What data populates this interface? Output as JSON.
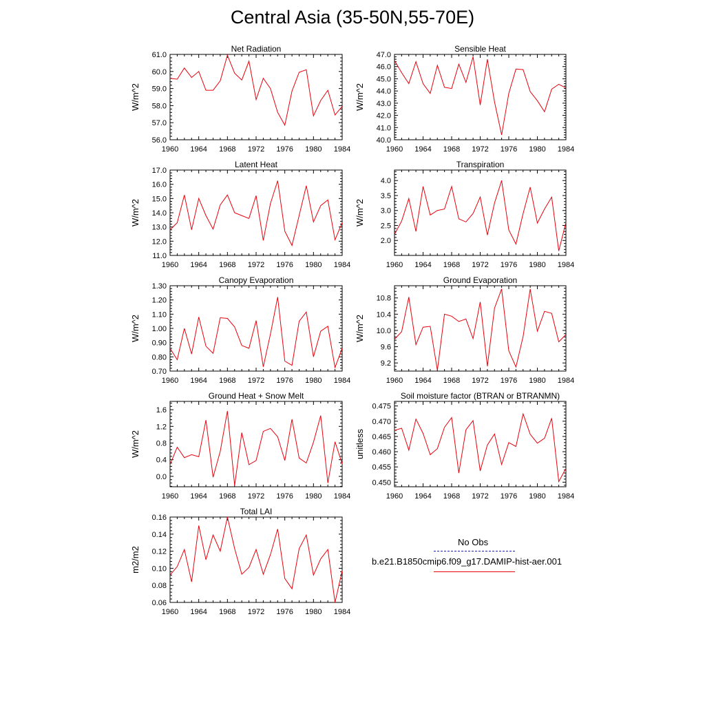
{
  "title": "Central Asia (35-50N,55-70E)",
  "colors": {
    "model": "#e8000b",
    "obs": "#1a1aa8"
  },
  "legend": {
    "obs_label": "No Obs",
    "model_label": "b.e21.B1850cmip6.f09_g17.DAMIP-hist-aer.001"
  },
  "chart_data": [
    {
      "type": "line",
      "title": "Net Radiation",
      "ylabel": "W/m^2",
      "xlim": [
        1960,
        1984
      ],
      "ylim": [
        56.0,
        61.0
      ],
      "yticks": [
        56.0,
        57.0,
        58.0,
        59.0,
        60.0,
        61.0
      ],
      "ytick_labels": [
        "56.0",
        "57.0",
        "58.0",
        "59.0",
        "60.0",
        "61.0"
      ],
      "xticks": [
        1960,
        1964,
        1968,
        1972,
        1976,
        1980,
        1984
      ],
      "xtick_labels": [
        "1960",
        "1964",
        "1968",
        "1972",
        "1976",
        "1980",
        "1984"
      ],
      "x": [
        1960,
        1961,
        1962,
        1963,
        1964,
        1965,
        1966,
        1967,
        1968,
        1969,
        1970,
        1971,
        1972,
        1973,
        1974,
        1975,
        1976,
        1977,
        1978,
        1979,
        1980,
        1981,
        1982,
        1983,
        1984
      ],
      "series": [
        {
          "name": "b.e21.B1850cmip6.f09_g17.DAMIP-hist-aer.001",
          "values": [
            59.6,
            59.55,
            60.2,
            59.65,
            60.0,
            58.9,
            58.9,
            59.45,
            60.95,
            59.9,
            59.5,
            60.6,
            58.35,
            59.6,
            59.0,
            57.6,
            56.85,
            58.85,
            59.95,
            60.1,
            57.4,
            58.3,
            58.9,
            57.45,
            57.95
          ]
        }
      ]
    },
    {
      "type": "line",
      "title": "Sensible Heat",
      "ylabel": "W/m^2",
      "xlim": [
        1960,
        1984
      ],
      "ylim": [
        40.0,
        47.0
      ],
      "yticks": [
        40.0,
        41.0,
        42.0,
        43.0,
        44.0,
        45.0,
        46.0,
        47.0
      ],
      "ytick_labels": [
        "40.0",
        "41.0",
        "42.0",
        "43.0",
        "44.0",
        "45.0",
        "46.0",
        "47.0"
      ],
      "xticks": [
        1960,
        1964,
        1968,
        1972,
        1976,
        1980,
        1984
      ],
      "xtick_labels": [
        "1960",
        "1964",
        "1968",
        "1972",
        "1976",
        "1980",
        "1984"
      ],
      "x": [
        1960,
        1961,
        1962,
        1963,
        1964,
        1965,
        1966,
        1967,
        1968,
        1969,
        1970,
        1971,
        1972,
        1973,
        1974,
        1975,
        1976,
        1977,
        1978,
        1979,
        1980,
        1981,
        1982,
        1983,
        1984
      ],
      "series": [
        {
          "name": "b.e21.B1850cmip6.f09_g17.DAMIP-hist-aer.001",
          "values": [
            46.5,
            45.5,
            44.6,
            46.4,
            44.6,
            43.8,
            46.1,
            44.3,
            44.2,
            46.2,
            44.7,
            46.8,
            42.85,
            46.6,
            43.1,
            40.4,
            43.8,
            45.8,
            45.75,
            43.95,
            43.2,
            42.3,
            44.15,
            44.55,
            44.25
          ]
        }
      ]
    },
    {
      "type": "line",
      "title": "Latent Heat",
      "ylabel": "W/m^2",
      "xlim": [
        1960,
        1984
      ],
      "ylim": [
        11.0,
        17.0
      ],
      "yticks": [
        11.0,
        12.0,
        13.0,
        14.0,
        15.0,
        16.0,
        17.0
      ],
      "ytick_labels": [
        "11.0",
        "12.0",
        "13.0",
        "14.0",
        "15.0",
        "16.0",
        "17.0"
      ],
      "xticks": [
        1960,
        1964,
        1968,
        1972,
        1976,
        1980,
        1984
      ],
      "xtick_labels": [
        "1960",
        "1964",
        "1968",
        "1972",
        "1976",
        "1980",
        "1984"
      ],
      "x": [
        1960,
        1961,
        1962,
        1963,
        1964,
        1965,
        1966,
        1967,
        1968,
        1969,
        1970,
        1971,
        1972,
        1973,
        1974,
        1975,
        1976,
        1977,
        1978,
        1979,
        1980,
        1981,
        1982,
        1983,
        1984
      ],
      "series": [
        {
          "name": "b.e21.B1850cmip6.f09_g17.DAMIP-hist-aer.001",
          "values": [
            12.8,
            13.3,
            15.25,
            12.8,
            15.0,
            13.8,
            12.85,
            14.55,
            15.25,
            14.0,
            13.8,
            13.6,
            15.2,
            12.05,
            14.65,
            16.25,
            12.7,
            11.7,
            13.8,
            15.9,
            13.35,
            14.5,
            14.9,
            12.1,
            13.3
          ]
        }
      ]
    },
    {
      "type": "line",
      "title": "Transpiration",
      "ylabel": "W/m^2",
      "xlim": [
        1960,
        1984
      ],
      "ylim": [
        1.5,
        4.35
      ],
      "yticks": [
        2.0,
        2.5,
        3.0,
        3.5,
        4.0
      ],
      "ytick_labels": [
        "2.0",
        "2.5",
        "3.0",
        "3.5",
        "4.0"
      ],
      "xticks": [
        1960,
        1964,
        1968,
        1972,
        1976,
        1980,
        1984
      ],
      "xtick_labels": [
        "1960",
        "1964",
        "1968",
        "1972",
        "1976",
        "1980",
        "1984"
      ],
      "x": [
        1960,
        1961,
        1962,
        1963,
        1964,
        1965,
        1966,
        1967,
        1968,
        1969,
        1970,
        1971,
        1972,
        1973,
        1974,
        1975,
        1976,
        1977,
        1978,
        1979,
        1980,
        1981,
        1982,
        1983,
        1984
      ],
      "series": [
        {
          "name": "b.e21.B1850cmip6.f09_g17.DAMIP-hist-aer.001",
          "values": [
            2.2,
            2.65,
            3.4,
            2.3,
            3.8,
            2.85,
            3.0,
            3.05,
            3.8,
            2.72,
            2.62,
            2.9,
            3.45,
            2.18,
            3.25,
            4.0,
            2.35,
            1.88,
            2.9,
            3.78,
            2.58,
            3.05,
            3.45,
            1.65,
            2.6
          ]
        }
      ]
    },
    {
      "type": "line",
      "title": "Canopy Evaporation",
      "ylabel": "W/m^2",
      "xlim": [
        1960,
        1984
      ],
      "ylim": [
        0.7,
        1.3
      ],
      "yticks": [
        0.7,
        0.8,
        0.9,
        1.0,
        1.1,
        1.2,
        1.3
      ],
      "ytick_labels": [
        "0.70",
        "0.80",
        "0.90",
        "1.00",
        "1.10",
        "1.20",
        "1.30"
      ],
      "xticks": [
        1960,
        1964,
        1968,
        1972,
        1976,
        1980,
        1984
      ],
      "xtick_labels": [
        "1960",
        "1964",
        "1968",
        "1972",
        "1976",
        "1980",
        "1984"
      ],
      "x": [
        1960,
        1961,
        1962,
        1963,
        1964,
        1965,
        1966,
        1967,
        1968,
        1969,
        1970,
        1971,
        1972,
        1973,
        1974,
        1975,
        1976,
        1977,
        1978,
        1979,
        1980,
        1981,
        1982,
        1983,
        1984
      ],
      "series": [
        {
          "name": "b.e21.B1850cmip6.f09_g17.DAMIP-hist-aer.001",
          "values": [
            0.86,
            0.78,
            1.0,
            0.82,
            1.08,
            0.875,
            0.825,
            1.075,
            1.07,
            1.01,
            0.88,
            0.86,
            1.055,
            0.73,
            0.96,
            1.22,
            0.77,
            0.74,
            1.05,
            1.115,
            0.8,
            0.98,
            1.015,
            0.725,
            0.86
          ]
        }
      ]
    },
    {
      "type": "line",
      "title": "Ground Evaporation",
      "ylabel": "W/m^2",
      "xlim": [
        1960,
        1984
      ],
      "ylim": [
        9.0,
        11.1
      ],
      "yticks": [
        9.2,
        9.6,
        10.0,
        10.4,
        10.8
      ],
      "ytick_labels": [
        "9.2",
        "9.6",
        "10.0",
        "10.4",
        "10.8"
      ],
      "xticks": [
        1960,
        1964,
        1968,
        1972,
        1976,
        1980,
        1984
      ],
      "xtick_labels": [
        "1960",
        "1964",
        "1968",
        "1972",
        "1976",
        "1980",
        "1984"
      ],
      "x": [
        1960,
        1961,
        1962,
        1963,
        1964,
        1965,
        1966,
        1967,
        1968,
        1969,
        1970,
        1971,
        1972,
        1973,
        1974,
        1975,
        1976,
        1977,
        1978,
        1979,
        1980,
        1981,
        1982,
        1983,
        1984
      ],
      "series": [
        {
          "name": "b.e21.B1850cmip6.f09_g17.DAMIP-hist-aer.001",
          "values": [
            9.78,
            9.97,
            10.82,
            9.65,
            10.08,
            10.1,
            9.02,
            10.4,
            10.35,
            10.22,
            10.28,
            9.8,
            10.7,
            9.12,
            10.55,
            11.02,
            9.5,
            9.1,
            9.85,
            11.02,
            9.98,
            10.47,
            10.42,
            9.72,
            9.9
          ]
        }
      ]
    },
    {
      "type": "line",
      "title": "Ground Heat + Snow Melt",
      "ylabel": "W/m^2",
      "xlim": [
        1960,
        1984
      ],
      "ylim": [
        -0.25,
        1.8
      ],
      "yticks": [
        0.0,
        0.4,
        0.8,
        1.2,
        1.6
      ],
      "ytick_labels": [
        "0.0",
        "0.4",
        "0.8",
        "1.2",
        "1.6"
      ],
      "xticks": [
        1960,
        1964,
        1968,
        1972,
        1976,
        1980,
        1984
      ],
      "xtick_labels": [
        "1960",
        "1964",
        "1968",
        "1972",
        "1976",
        "1980",
        "1984"
      ],
      "x": [
        1960,
        1961,
        1962,
        1963,
        1964,
        1965,
        1966,
        1967,
        1968,
        1969,
        1970,
        1971,
        1972,
        1973,
        1974,
        1975,
        1976,
        1977,
        1978,
        1979,
        1980,
        1981,
        1982,
        1983,
        1984
      ],
      "series": [
        {
          "name": "b.e21.B1850cmip6.f09_g17.DAMIP-hist-aer.001",
          "values": [
            0.28,
            0.7,
            0.45,
            0.52,
            0.47,
            1.35,
            -0.02,
            0.6,
            1.57,
            -0.22,
            1.05,
            0.28,
            0.38,
            1.08,
            1.15,
            0.95,
            0.38,
            1.37,
            0.44,
            0.32,
            0.82,
            1.46,
            -0.16,
            0.83,
            0.3
          ]
        }
      ]
    },
    {
      "type": "line",
      "title": "Soil moisture factor (BTRAN or BTRANMN)",
      "ylabel": "unitless",
      "xlim": [
        1960,
        1984
      ],
      "ylim": [
        0.4485,
        0.4765
      ],
      "yticks": [
        0.45,
        0.455,
        0.46,
        0.465,
        0.47,
        0.475
      ],
      "ytick_labels": [
        "0.450",
        "0.455",
        "0.460",
        "0.465",
        "0.470",
        "0.475"
      ],
      "xticks": [
        1960,
        1964,
        1968,
        1972,
        1976,
        1980,
        1984
      ],
      "xtick_labels": [
        "1960",
        "1964",
        "1968",
        "1972",
        "1976",
        "1980",
        "1984"
      ],
      "x": [
        1960,
        1961,
        1962,
        1963,
        1964,
        1965,
        1966,
        1967,
        1968,
        1969,
        1970,
        1971,
        1972,
        1973,
        1974,
        1975,
        1976,
        1977,
        1978,
        1979,
        1980,
        1981,
        1982,
        1983,
        1984
      ],
      "series": [
        {
          "name": "b.e21.B1850cmip6.f09_g17.DAMIP-hist-aer.001",
          "values": [
            0.467,
            0.4677,
            0.4605,
            0.4707,
            0.466,
            0.459,
            0.461,
            0.468,
            0.4712,
            0.453,
            0.4672,
            0.4702,
            0.4537,
            0.4622,
            0.4658,
            0.4558,
            0.463,
            0.4617,
            0.4724,
            0.4657,
            0.4628,
            0.4644,
            0.471,
            0.4502,
            0.4545
          ]
        }
      ]
    },
    {
      "type": "line",
      "title": "Total LAI",
      "ylabel": "m2/m2",
      "xlim": [
        1960,
        1984
      ],
      "ylim": [
        0.06,
        0.16
      ],
      "yticks": [
        0.06,
        0.08,
        0.1,
        0.12,
        0.14,
        0.16
      ],
      "ytick_labels": [
        "0.06",
        "0.08",
        "0.10",
        "0.12",
        "0.14",
        "0.16"
      ],
      "xticks": [
        1960,
        1964,
        1968,
        1972,
        1976,
        1980,
        1984
      ],
      "xtick_labels": [
        "1960",
        "1964",
        "1968",
        "1972",
        "1976",
        "1980",
        "1984"
      ],
      "x": [
        1960,
        1961,
        1962,
        1963,
        1964,
        1965,
        1966,
        1967,
        1968,
        1969,
        1970,
        1971,
        1972,
        1973,
        1974,
        1975,
        1976,
        1977,
        1978,
        1979,
        1980,
        1981,
        1982,
        1983,
        1984
      ],
      "series": [
        {
          "name": "b.e21.B1850cmip6.f09_g17.DAMIP-hist-aer.001",
          "values": [
            0.092,
            0.102,
            0.122,
            0.084,
            0.15,
            0.11,
            0.139,
            0.12,
            0.16,
            0.123,
            0.093,
            0.101,
            0.122,
            0.093,
            0.116,
            0.146,
            0.088,
            0.076,
            0.123,
            0.139,
            0.092,
            0.111,
            0.122,
            0.06,
            0.097
          ]
        }
      ]
    }
  ]
}
